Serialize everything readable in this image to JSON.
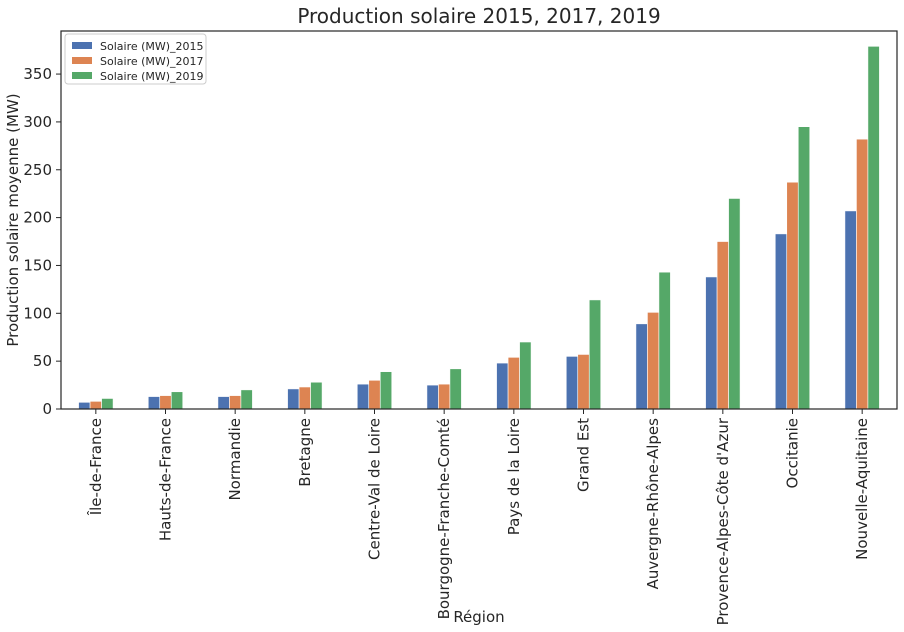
{
  "chart_data": {
    "type": "bar",
    "title": "Production solaire 2015, 2017, 2019",
    "xlabel": "Région",
    "ylabel": "Production solaire moyenne (MW)",
    "ylim": [
      0,
      395
    ],
    "yticks": [
      0,
      50,
      100,
      150,
      200,
      250,
      300,
      350
    ],
    "grid": false,
    "legend_position": "top-left",
    "categories": [
      "Île-de-France",
      "Hauts-de-France",
      "Normandie",
      "Bretagne",
      "Centre-Val de Loire",
      "Bourgogne-Franche-Comté",
      "Pays de la Loire",
      "Grand Est",
      "Auvergne-Rhône-Alpes",
      "Provence-Alpes-Côte d'Azur",
      "Occitanie",
      "Nouvelle-Aquitaine"
    ],
    "series": [
      {
        "name": "Solaire (MW)_2015",
        "color": "#4c72b0",
        "values": [
          7,
          13,
          13,
          21,
          26,
          25,
          48,
          55,
          89,
          138,
          183,
          207
        ]
      },
      {
        "name": "Solaire (MW)_2017",
        "color": "#dd8452",
        "values": [
          8,
          14,
          14,
          23,
          30,
          26,
          54,
          57,
          101,
          175,
          237,
          282
        ]
      },
      {
        "name": "Solaire (MW)_2019",
        "color": "#55a868",
        "values": [
          11,
          18,
          20,
          28,
          39,
          42,
          70,
          114,
          143,
          220,
          295,
          379
        ]
      }
    ]
  }
}
